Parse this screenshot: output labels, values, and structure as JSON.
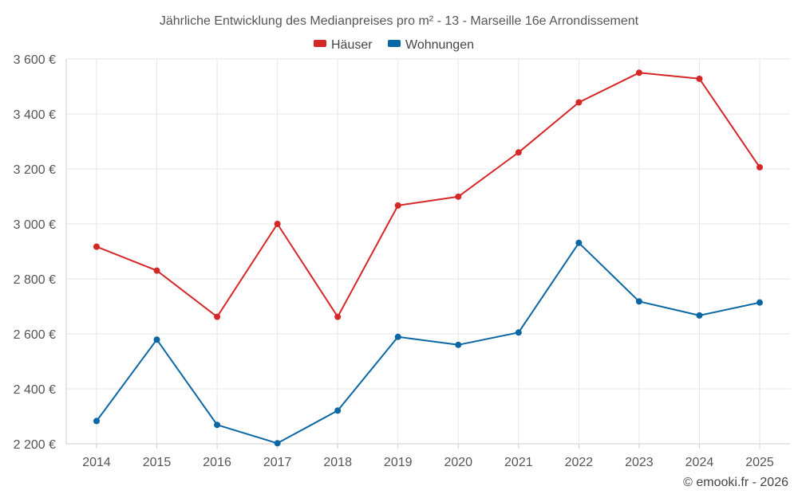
{
  "chart_data": {
    "type": "line",
    "title": "Jährliche Entwicklung des Medianpreises pro m² - 13 - Marseille 16e Arrondissement",
    "categories": [
      "2014",
      "2015",
      "2016",
      "2017",
      "2018",
      "2019",
      "2020",
      "2021",
      "2022",
      "2023",
      "2024",
      "2025"
    ],
    "series": [
      {
        "name": "Häuser",
        "color": "#d62728",
        "values": [
          2917,
          2830,
          2662,
          3000,
          2662,
          3067,
          3099,
          3260,
          3442,
          3550,
          3528,
          3206
        ]
      },
      {
        "name": "Wohnungen",
        "color": "#0a67a3",
        "values": [
          2283,
          2579,
          2269,
          2202,
          2321,
          2589,
          2560,
          2605,
          2931,
          2718,
          2667,
          2714
        ]
      }
    ],
    "ylim": [
      2200,
      3600
    ],
    "yticks": [
      2200,
      2400,
      2600,
      2800,
      3000,
      3200,
      3400,
      3600
    ],
    "ytick_labels": [
      "2 200 €",
      "2 400 €",
      "2 600 €",
      "2 800 €",
      "3 000 €",
      "3 200 €",
      "3 400 €",
      "3 600 €"
    ],
    "legend": "top-center",
    "grid": true,
    "xlabel": "",
    "ylabel": ""
  },
  "credit": "© emooki.fr - 2026"
}
